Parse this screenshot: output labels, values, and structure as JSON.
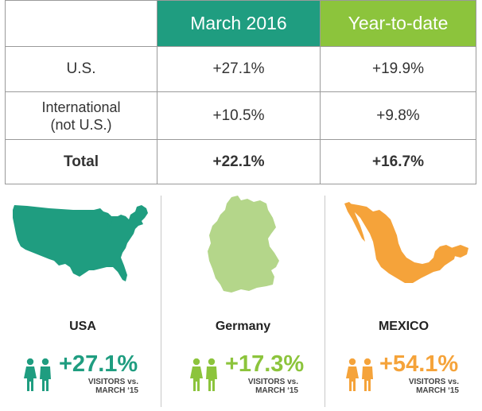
{
  "table": {
    "headers": [
      "",
      "March 2016",
      "Year-to-date"
    ],
    "rows": [
      {
        "label": "U.S.",
        "march": "+27.1%",
        "ytd": "+19.9%"
      },
      {
        "label_line1": "International",
        "label_line2": "(not U.S.)",
        "march": "+10.5%",
        "ytd": "+9.8%"
      },
      {
        "label": "Total",
        "march": "+22.1%",
        "ytd": "+16.7%"
      }
    ],
    "colors": {
      "march": "#1f9d80",
      "ytd": "#8cc43c"
    }
  },
  "countries": [
    {
      "name": "USA",
      "change": "+27.1%",
      "caption_line1": "VISITORS vs.",
      "caption_line2": "MARCH ‘15",
      "color": "#1f9d80",
      "icon": "people-icon"
    },
    {
      "name": "Germany",
      "change": "+17.3%",
      "caption_line1": "VISITORS vs.",
      "caption_line2": "MARCH ‘15",
      "color": "#8cc43c",
      "icon": "people-icon"
    },
    {
      "name": "MEXICO",
      "change": "+54.1%",
      "caption_line1": "VISITORS vs.",
      "caption_line2": "MARCH ‘15",
      "color": "#f5a33a",
      "icon": "people-icon"
    }
  ]
}
